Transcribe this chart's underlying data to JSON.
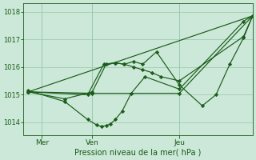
{
  "background_color": "#cce8d8",
  "grid_color": "#99c8aa",
  "line_color": "#1a5c1a",
  "xlabel": "Pression niveau de la mer( hPa )",
  "xlabel_color": "#1a5c1a",
  "yticks": [
    1014,
    1015,
    1016,
    1017,
    1018
  ],
  "ylim": [
    1013.55,
    1018.3
  ],
  "xlim": [
    0.0,
    1.0
  ],
  "xtick_labels": [
    "Mer",
    "Ven",
    "Jeu"
  ],
  "xtick_positions": [
    0.08,
    0.3,
    0.68
  ],
  "series": [
    {
      "x": [
        0.02,
        0.18,
        0.28,
        0.32,
        0.34,
        0.36,
        0.38,
        0.4,
        0.43,
        0.47,
        0.53,
        0.68,
        0.96,
        1.0
      ],
      "y": [
        1015.15,
        1014.75,
        1014.1,
        1013.9,
        1013.85,
        1013.88,
        1013.95,
        1014.1,
        1014.4,
        1015.05,
        1015.65,
        1015.2,
        1017.65,
        1017.85
      ]
    },
    {
      "x": [
        0.02,
        0.3,
        0.68,
        1.0
      ],
      "y": [
        1015.1,
        1015.05,
        1015.05,
        1017.85
      ]
    },
    {
      "x": [
        0.02,
        0.18,
        0.3,
        0.36,
        0.4,
        0.44,
        0.48,
        0.52,
        0.56,
        0.6,
        0.68,
        0.96,
        1.0
      ],
      "y": [
        1015.1,
        1014.85,
        1015.1,
        1016.1,
        1016.15,
        1016.1,
        1016.0,
        1015.9,
        1015.8,
        1015.65,
        1015.5,
        1017.1,
        1017.85
      ]
    },
    {
      "x": [
        0.02,
        0.28,
        0.35,
        0.4,
        0.44,
        0.48,
        0.52,
        0.58,
        0.68,
        0.78,
        0.84,
        0.9,
        0.96,
        1.0
      ],
      "y": [
        1015.1,
        1015.0,
        1016.1,
        1016.15,
        1016.1,
        1016.2,
        1016.1,
        1016.55,
        1015.35,
        1014.6,
        1015.0,
        1016.1,
        1017.05,
        1017.85
      ]
    },
    {
      "x": [
        0.02,
        1.0
      ],
      "y": [
        1015.1,
        1017.85
      ]
    }
  ]
}
